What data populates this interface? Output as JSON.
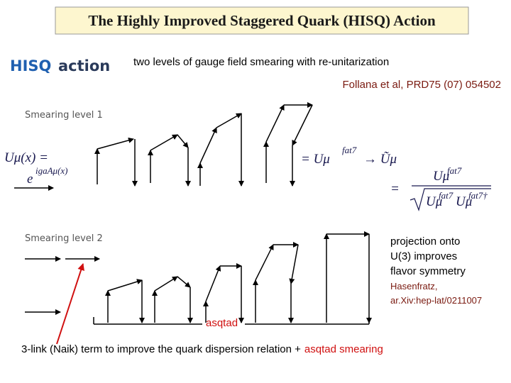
{
  "header": {
    "title": "The Highly Improved Staggered Quark (HISQ) Action"
  },
  "logo": {
    "hisq": "HISQ",
    "action": "action"
  },
  "subtitle": "two levels of gauge field smearing with re-unitarization",
  "reference": "Follana et al, PRD75 (07) 054502",
  "level1": {
    "label": "Smearing level 1"
  },
  "level2": {
    "label": "Smearing level 2"
  },
  "formula1": {
    "lhs": "Uμ(x) =",
    "base": "e",
    "exponent": "igaAμ(x)"
  },
  "formula2": {
    "lhs": "= Uμ",
    "sup": "fat7",
    "rhs": "→ Ũμ"
  },
  "formula3": {
    "lhs": "=",
    "numerator": {
      "base": "Uμ",
      "sup": "fat7"
    },
    "denominator": [
      {
        "base": "Uμ",
        "sup": "fat7"
      },
      {
        "base": "Uμ",
        "sup": "fat7†"
      }
    ]
  },
  "projection": [
    "projection onto",
    "U(3) improves",
    "flavor symmetry"
  ],
  "citation": [
    "Hasenfratz,",
    "ar.Xiv:hep-lat/0211007"
  ],
  "asqtad": "asqtad",
  "footnote": [
    "3-link (Naik) term to improve the quark dispersion relation +",
    "asqtad smearing"
  ]
}
